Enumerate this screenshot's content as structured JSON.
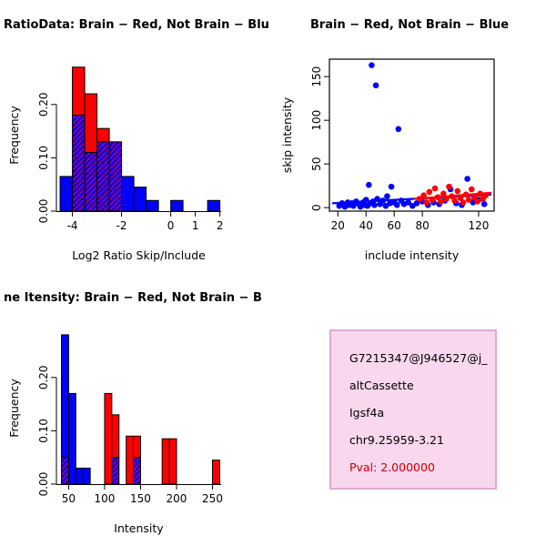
{
  "window": {
    "background": "#ffffff"
  },
  "colors": {
    "blue": "#0000ff",
    "red": "#ff0000",
    "axis": "#000000"
  },
  "chart_data": [
    {
      "type": "bar",
      "subtype": "overlaid-histogram",
      "title": "RatioData: Brain − Red, Not Brain − Blu",
      "xlabel": "Log2 Ratio Skip/Include",
      "ylabel": "Frequency",
      "xlim": [
        -4.65,
        2.05
      ],
      "ylim": [
        0,
        0.285
      ],
      "xticks": [
        -4,
        -2,
        0,
        1,
        2
      ],
      "yticks": [
        0,
        0.1,
        0.2
      ],
      "ytick_labels": [
        "0.00",
        "0.10",
        "0.20"
      ],
      "bin_start": -4.5,
      "bin_width": 0.5,
      "series": [
        {
          "name": "Not Brain",
          "color": "blue",
          "values": [
            0.065,
            0.18,
            0.11,
            0.13,
            0.13,
            0.065,
            0.045,
            0.02,
            0,
            0.02,
            0,
            0,
            0.02,
            0
          ]
        },
        {
          "name": "Brain",
          "color": "red",
          "values": [
            0,
            0.27,
            0.22,
            0.155,
            0.13,
            0,
            0,
            0,
            0,
            0,
            0,
            0,
            0,
            0
          ]
        }
      ]
    },
    {
      "type": "scatter",
      "title": "Brain − Red, Not Brain − Blue",
      "xlabel": "include intensity",
      "ylabel": "skip intensity",
      "xlim": [
        14,
        131
      ],
      "ylim": [
        -4,
        170
      ],
      "xticks": [
        20,
        40,
        60,
        80,
        120
      ],
      "yticks": [
        0,
        50,
        100,
        150
      ],
      "series": [
        {
          "name": "Not Brain",
          "color": "blue",
          "points": [
            [
              21,
              2
            ],
            [
              23,
              5
            ],
            [
              25,
              1
            ],
            [
              27,
              6
            ],
            [
              28,
              3
            ],
            [
              30,
              5
            ],
            [
              31,
              2
            ],
            [
              33,
              7
            ],
            [
              35,
              4
            ],
            [
              36,
              1
            ],
            [
              38,
              6
            ],
            [
              39,
              3
            ],
            [
              40,
              9
            ],
            [
              41,
              2
            ],
            [
              42,
              26
            ],
            [
              43,
              5
            ],
            [
              44,
              163
            ],
            [
              45,
              7
            ],
            [
              46,
              3
            ],
            [
              47,
              140
            ],
            [
              48,
              10
            ],
            [
              50,
              4
            ],
            [
              52,
              8
            ],
            [
              54,
              2
            ],
            [
              55,
              13
            ],
            [
              57,
              5
            ],
            [
              58,
              24
            ],
            [
              60,
              6
            ],
            [
              62,
              3
            ],
            [
              63,
              90
            ],
            [
              65,
              8
            ],
            [
              67,
              4
            ],
            [
              70,
              6
            ],
            [
              73,
              2
            ],
            [
              76,
              5
            ],
            [
              80,
              7
            ],
            [
              84,
              3
            ],
            [
              88,
              6
            ],
            [
              92,
              4
            ],
            [
              96,
              8
            ],
            [
              100,
              21
            ],
            [
              104,
              5
            ],
            [
              108,
              3
            ],
            [
              112,
              33
            ],
            [
              116,
              6
            ],
            [
              120,
              9
            ],
            [
              124,
              4
            ]
          ]
        },
        {
          "name": "Brain",
          "color": "red",
          "points": [
            [
              78,
              10
            ],
            [
              81,
              14
            ],
            [
              83,
              6
            ],
            [
              85,
              18
            ],
            [
              87,
              9
            ],
            [
              89,
              22
            ],
            [
              91,
              12
            ],
            [
              93,
              7
            ],
            [
              95,
              16
            ],
            [
              97,
              10
            ],
            [
              99,
              24
            ],
            [
              101,
              13
            ],
            [
              103,
              8
            ],
            [
              105,
              19
            ],
            [
              107,
              11
            ],
            [
              109,
              6
            ],
            [
              111,
              15
            ],
            [
              113,
              9
            ],
            [
              115,
              21
            ],
            [
              117,
              12
            ],
            [
              119,
              7
            ],
            [
              121,
              16
            ],
            [
              123,
              10
            ],
            [
              125,
              14
            ]
          ]
        }
      ],
      "fit_lines": [
        {
          "color": "blue",
          "x1": 16,
          "y1": 5,
          "x2": 129,
          "y2": 15
        },
        {
          "color": "red",
          "x1": 74,
          "y1": 10,
          "x2": 129,
          "y2": 17
        }
      ]
    },
    {
      "type": "bar",
      "subtype": "overlaid-histogram",
      "title": "ne Itensity: Brain − Red, Not Brain − B",
      "xlabel": "Intensity",
      "ylabel": "Frequency",
      "xlim": [
        33,
        262
      ],
      "ylim": [
        0,
        0.285
      ],
      "xticks": [
        50,
        100,
        150,
        200,
        250
      ],
      "yticks": [
        0,
        0.1,
        0.2
      ],
      "ytick_labels": [
        "0.00",
        "0.10",
        "0.20"
      ],
      "bin_start": 40,
      "bin_width": 10,
      "series": [
        {
          "name": "Not Brain",
          "color": "blue",
          "values": [
            0.28,
            0.17,
            0.03,
            0.03,
            0,
            0,
            0,
            0.05,
            0,
            0,
            0.05,
            0,
            0,
            0,
            0,
            0,
            0,
            0,
            0,
            0,
            0,
            0
          ]
        },
        {
          "name": "Brain",
          "color": "red",
          "values": [
            0.05,
            0,
            0,
            0,
            0,
            0,
            0.17,
            0.13,
            0,
            0.09,
            0.09,
            0,
            0,
            0,
            0.085,
            0.085,
            0,
            0,
            0,
            0,
            0,
            0.045
          ]
        }
      ]
    }
  ],
  "info_box": {
    "background": "#f8d7ef",
    "border": "#e2a9d4",
    "lines": [
      {
        "text": "G7215347@J946527@j_",
        "color": "#000000"
      },
      {
        "text": "altCassette",
        "color": "#000000"
      },
      {
        "text": "Igsf4a",
        "color": "#000000"
      },
      {
        "text": "chr9.25959-3.21",
        "color": "#000000"
      },
      {
        "text": "Pval: 2.000000",
        "color": "#cd0000"
      }
    ]
  }
}
